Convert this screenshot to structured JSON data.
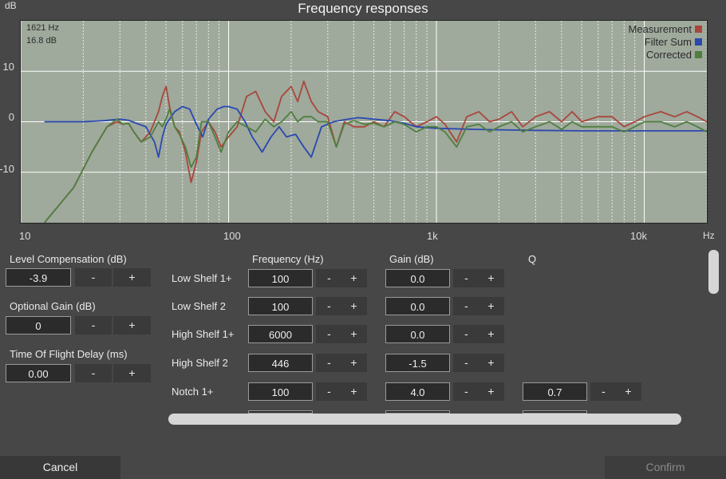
{
  "title": "Frequency responses",
  "y_unit": "dB",
  "x_unit": "Hz",
  "readout": {
    "freq": "1621 Hz",
    "gain": "16.8 dB"
  },
  "yticks": [
    "10",
    "0",
    "-10"
  ],
  "xticks": [
    "10",
    "100",
    "1k",
    "10k"
  ],
  "legend": [
    {
      "label": "Measurement",
      "color": "#a8473b"
    },
    {
      "label": "Filter Sum",
      "color": "#2a48b0"
    },
    {
      "label": "Corrected",
      "color": "#4f7f3f"
    }
  ],
  "colors": {
    "plot_bg": "#9fa99c",
    "grid_major": "#ffffff",
    "grid_minor": "#e8ece6"
  },
  "chart_data": {
    "type": "line",
    "xscale": "log",
    "xlim": [
      10,
      20000
    ],
    "ylim": [
      -20,
      20
    ],
    "xlabel": "Hz",
    "ylabel": "dB",
    "series": [
      {
        "name": "Measurement",
        "x": [
          13,
          18,
          22,
          26,
          29,
          31,
          33,
          35,
          38,
          42,
          46,
          48,
          50,
          52,
          55,
          58,
          62,
          66,
          70,
          74,
          80,
          86,
          92,
          100,
          110,
          122,
          135,
          150,
          165,
          180,
          200,
          215,
          230,
          250,
          270,
          300,
          330,
          360,
          400,
          450,
          500,
          560,
          630,
          700,
          800,
          900,
          1000,
          1100,
          1250,
          1400,
          1600,
          1800,
          2000,
          2300,
          2600,
          3000,
          3500,
          4000,
          4500,
          5000,
          6000,
          7000,
          8000,
          9000,
          10000,
          12000,
          14000,
          16000,
          18000,
          20000
        ],
        "y": [
          -20,
          -13,
          -6,
          -1,
          0,
          -0.5,
          -0.3,
          -2,
          -4,
          -2,
          2,
          5,
          7,
          3,
          -1,
          -2,
          -6,
          -12,
          -8,
          -2,
          0,
          -2,
          -5,
          -3,
          -1,
          5,
          6,
          2,
          0,
          5,
          7,
          4,
          8,
          4,
          2,
          1,
          -5,
          0,
          -1,
          -1,
          0,
          -1,
          2,
          1,
          -1,
          0,
          1,
          -0.5,
          -4,
          1,
          2,
          0,
          0.5,
          2,
          -1,
          1,
          2,
          0,
          2,
          0,
          1,
          1,
          -1,
          0,
          1,
          2,
          1,
          2,
          1,
          0
        ]
      },
      {
        "name": "Filter Sum",
        "x": [
          13,
          20,
          25,
          30,
          33,
          36,
          40,
          44,
          46,
          48,
          50,
          55,
          60,
          65,
          70,
          75,
          80,
          88,
          95,
          100,
          110,
          120,
          130,
          145,
          160,
          175,
          190,
          210,
          230,
          250,
          280,
          320,
          360,
          420,
          500,
          600,
          700,
          800,
          1000,
          1500,
          2000,
          3000,
          5000,
          8000,
          12000,
          20000
        ],
        "y": [
          0,
          0,
          0.2,
          0.5,
          0.3,
          -0.3,
          -1,
          -4,
          -7,
          -3,
          -0.5,
          2,
          3,
          2.5,
          -0.5,
          -3,
          0.5,
          2.5,
          3,
          3,
          2.5,
          0,
          -3,
          -6,
          -3,
          -1,
          -3,
          -2.5,
          -5,
          -7,
          -1,
          0,
          0.4,
          0.8,
          0.5,
          0.2,
          -0.3,
          -1,
          -1.3,
          -1.5,
          -1.6,
          -1.7,
          -1.8,
          -1.8,
          -1.8,
          -1.8
        ]
      },
      {
        "name": "Corrected",
        "x": [
          13,
          18,
          22,
          26,
          29,
          31,
          33,
          35,
          38,
          42,
          46,
          48,
          50,
          52,
          55,
          58,
          62,
          66,
          70,
          74,
          80,
          86,
          92,
          100,
          110,
          122,
          135,
          150,
          165,
          180,
          200,
          215,
          230,
          250,
          270,
          300,
          330,
          360,
          400,
          450,
          500,
          560,
          630,
          700,
          800,
          900,
          1000,
          1100,
          1250,
          1400,
          1600,
          1800,
          2000,
          2300,
          2600,
          3000,
          3500,
          4000,
          4500,
          5000,
          6000,
          7000,
          8000,
          9000,
          10000,
          12000,
          14000,
          16000,
          18000,
          20000
        ],
        "y": [
          -20,
          -13,
          -6,
          -1,
          0.5,
          -0.5,
          -0.3,
          -2,
          -4,
          -3,
          0,
          -1,
          0.5,
          2.5,
          -1,
          -2.5,
          -5,
          -9,
          -7,
          0,
          0,
          -3,
          -6,
          -2,
          0,
          -1,
          -2,
          0.5,
          -1,
          0,
          2,
          0,
          1,
          1,
          0,
          0,
          -5,
          -0.5,
          0.2,
          -0.5,
          -0.3,
          -1,
          0,
          -0.5,
          -2,
          -1,
          -1,
          -2,
          -5,
          -1,
          -0.5,
          -2,
          -1,
          0,
          -2,
          -1,
          0,
          -1.5,
          0,
          -1,
          -1,
          -1,
          -2,
          -1,
          0,
          0,
          -1,
          0,
          -1,
          -2
        ]
      }
    ]
  },
  "left_panel": {
    "level_comp_label": "Level Compensation (dB)",
    "level_comp_value": "-3.9",
    "opt_gain_label": "Optional Gain (dB)",
    "opt_gain_value": "0",
    "tof_label": "Time Of Flight Delay (ms)",
    "tof_value": "0.00",
    "minus": "-",
    "plus": "+"
  },
  "filters": {
    "freq_header": "Frequency (Hz)",
    "gain_header": "Gain (dB)",
    "q_header": "Q",
    "rows": [
      {
        "label": "Low Shelf 1+",
        "freq": "100",
        "gain": "0.0",
        "q": ""
      },
      {
        "label": "Low Shelf 2",
        "freq": "100",
        "gain": "0.0",
        "q": ""
      },
      {
        "label": "High Shelf 1+",
        "freq": "6000",
        "gain": "0.0",
        "q": ""
      },
      {
        "label": "High Shelf 2",
        "freq": "446",
        "gain": "-1.5",
        "q": ""
      },
      {
        "label": "Notch 1+",
        "freq": "100",
        "gain": "4.0",
        "q": "0.7"
      }
    ]
  },
  "buttons": {
    "cancel": "Cancel",
    "confirm": "Confirm"
  }
}
